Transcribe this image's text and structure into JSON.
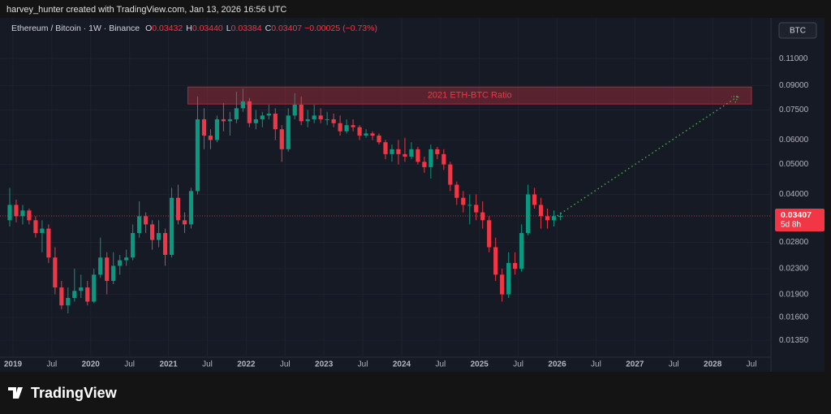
{
  "header": {
    "attribution": "harvey_hunter created with TradingView.com, Jan 13, 2026 16:56 UTC"
  },
  "legend": {
    "symbol": "Ethereum / Bitcoin · 1W · Binance",
    "ohlc": [
      {
        "key": "O",
        "value": "0.03432"
      },
      {
        "key": "H",
        "value": "0.03440"
      },
      {
        "key": "L",
        "value": "0.03384"
      },
      {
        "key": "C",
        "value": "0.03407"
      }
    ],
    "change": "−0.00025 (−0.73%)"
  },
  "currency_button": "BTC",
  "footer": {
    "logo_text": "TradingView"
  },
  "chart_data": {
    "type": "candlestick",
    "log_scale": true,
    "grid": true,
    "up_color": "#089981",
    "down_color": "#f23645",
    "x": [
      "2018-12",
      "2019-01",
      "2019-02",
      "2019-03",
      "2019-04",
      "2019-05",
      "2019-06",
      "2019-07",
      "2019-08",
      "2019-09",
      "2019-10",
      "2019-11",
      "2019-12",
      "2020-01",
      "2020-02",
      "2020-03",
      "2020-04",
      "2020-05",
      "2020-06",
      "2020-07",
      "2020-08",
      "2020-09",
      "2020-10",
      "2020-11",
      "2020-12",
      "2021-01",
      "2021-02",
      "2021-03",
      "2021-04",
      "2021-05",
      "2021-06",
      "2021-07",
      "2021-08",
      "2021-09",
      "2021-10",
      "2021-11",
      "2021-12",
      "2022-01",
      "2022-02",
      "2022-03",
      "2022-04",
      "2022-05",
      "2022-06",
      "2022-07",
      "2022-08",
      "2022-09",
      "2022-10",
      "2022-11",
      "2022-12",
      "2023-01",
      "2023-02",
      "2023-03",
      "2023-04",
      "2023-05",
      "2023-06",
      "2023-07",
      "2023-08",
      "2023-09",
      "2023-10",
      "2023-11",
      "2023-12",
      "2024-01",
      "2024-02",
      "2024-03",
      "2024-04",
      "2024-05",
      "2024-06",
      "2024-07",
      "2024-08",
      "2024-09",
      "2024-10",
      "2024-11",
      "2024-12",
      "2025-01",
      "2025-02",
      "2025-03",
      "2025-04",
      "2025-05",
      "2025-06",
      "2025-07",
      "2025-08",
      "2025-09",
      "2025-10",
      "2025-11",
      "2025-12",
      "2026-01"
    ],
    "open": [
      0.033,
      0.037,
      0.034,
      0.0355,
      0.033,
      0.03,
      0.031,
      0.025,
      0.02,
      0.0175,
      0.0185,
      0.0195,
      0.02,
      0.018,
      0.022,
      0.025,
      0.021,
      0.0235,
      0.0245,
      0.025,
      0.03,
      0.034,
      0.032,
      0.0285,
      0.03,
      0.0255,
      0.039,
      0.033,
      0.032,
      0.041,
      0.07,
      0.062,
      0.06,
      0.07,
      0.069,
      0.07,
      0.076,
      0.08,
      0.068,
      0.07,
      0.072,
      0.073,
      0.065,
      0.056,
      0.072,
      0.078,
      0.069,
      0.07,
      0.072,
      0.07,
      0.07,
      0.068,
      0.064,
      0.067,
      0.066,
      0.062,
      0.063,
      0.062,
      0.059,
      0.054,
      0.056,
      0.054,
      0.053,
      0.056,
      0.051,
      0.049,
      0.056,
      0.054,
      0.05,
      0.043,
      0.039,
      0.037,
      0.037,
      0.035,
      0.033,
      0.027,
      0.022,
      0.019,
      0.024,
      0.023,
      0.03,
      0.04,
      0.037,
      0.034,
      0.033,
      0.034
    ],
    "high": [
      0.042,
      0.0385,
      0.037,
      0.036,
      0.034,
      0.033,
      0.032,
      0.027,
      0.021,
      0.02,
      0.023,
      0.022,
      0.021,
      0.023,
      0.029,
      0.026,
      0.026,
      0.0255,
      0.0265,
      0.032,
      0.038,
      0.035,
      0.033,
      0.033,
      0.031,
      0.042,
      0.043,
      0.035,
      0.042,
      0.083,
      0.076,
      0.065,
      0.072,
      0.079,
      0.074,
      0.086,
      0.088,
      0.082,
      0.075,
      0.074,
      0.078,
      0.076,
      0.067,
      0.076,
      0.085,
      0.083,
      0.075,
      0.078,
      0.076,
      0.074,
      0.073,
      0.072,
      0.07,
      0.07,
      0.067,
      0.065,
      0.064,
      0.063,
      0.06,
      0.058,
      0.06,
      0.061,
      0.059,
      0.057,
      0.053,
      0.058,
      0.057,
      0.056,
      0.051,
      0.044,
      0.041,
      0.04,
      0.04,
      0.038,
      0.034,
      0.029,
      0.023,
      0.026,
      0.026,
      0.032,
      0.043,
      0.042,
      0.039,
      0.036,
      0.0355,
      0.035
    ],
    "low": [
      0.0315,
      0.0325,
      0.032,
      0.032,
      0.029,
      0.026,
      0.024,
      0.019,
      0.017,
      0.0165,
      0.018,
      0.0185,
      0.0175,
      0.0178,
      0.0215,
      0.019,
      0.0205,
      0.022,
      0.0235,
      0.0245,
      0.029,
      0.03,
      0.0265,
      0.027,
      0.0235,
      0.025,
      0.032,
      0.03,
      0.031,
      0.04,
      0.056,
      0.056,
      0.059,
      0.064,
      0.062,
      0.068,
      0.074,
      0.066,
      0.065,
      0.066,
      0.07,
      0.06,
      0.051,
      0.055,
      0.07,
      0.067,
      0.066,
      0.068,
      0.068,
      0.067,
      0.066,
      0.062,
      0.063,
      0.064,
      0.06,
      0.061,
      0.06,
      0.058,
      0.052,
      0.051,
      0.05,
      0.051,
      0.052,
      0.05,
      0.047,
      0.045,
      0.052,
      0.048,
      0.041,
      0.037,
      0.035,
      0.032,
      0.033,
      0.031,
      0.026,
      0.021,
      0.018,
      0.0185,
      0.022,
      0.0225,
      0.0295,
      0.036,
      0.031,
      0.031,
      0.0315,
      0.033
    ],
    "close": [
      0.037,
      0.034,
      0.0355,
      0.033,
      0.03,
      0.031,
      0.025,
      0.02,
      0.0175,
      0.0185,
      0.0195,
      0.02,
      0.018,
      0.022,
      0.025,
      0.021,
      0.0235,
      0.0245,
      0.025,
      0.03,
      0.034,
      0.032,
      0.0285,
      0.03,
      0.0255,
      0.039,
      0.033,
      0.032,
      0.041,
      0.07,
      0.062,
      0.06,
      0.07,
      0.069,
      0.07,
      0.076,
      0.08,
      0.068,
      0.07,
      0.072,
      0.073,
      0.065,
      0.056,
      0.072,
      0.078,
      0.069,
      0.07,
      0.072,
      0.07,
      0.07,
      0.068,
      0.064,
      0.067,
      0.066,
      0.062,
      0.063,
      0.062,
      0.059,
      0.054,
      0.056,
      0.054,
      0.053,
      0.056,
      0.051,
      0.049,
      0.056,
      0.054,
      0.05,
      0.043,
      0.039,
      0.037,
      0.037,
      0.035,
      0.033,
      0.027,
      0.022,
      0.019,
      0.024,
      0.023,
      0.03,
      0.04,
      0.037,
      0.034,
      0.033,
      0.034,
      0.03407
    ],
    "xlim": [
      "2018-11",
      "2028-10"
    ],
    "xticks": [
      {
        "value": "2019-01",
        "label": "2019"
      },
      {
        "value": "2019-07",
        "label": "Jul"
      },
      {
        "value": "2020-01",
        "label": "2020"
      },
      {
        "value": "2020-07",
        "label": "Jul"
      },
      {
        "value": "2021-01",
        "label": "2021"
      },
      {
        "value": "2021-07",
        "label": "Jul"
      },
      {
        "value": "2022-01",
        "label": "2022"
      },
      {
        "value": "2022-07",
        "label": "Jul"
      },
      {
        "value": "2023-01",
        "label": "2023"
      },
      {
        "value": "2023-07",
        "label": "Jul"
      },
      {
        "value": "2024-01",
        "label": "2024"
      },
      {
        "value": "2024-07",
        "label": "Jul"
      },
      {
        "value": "2025-01",
        "label": "2025"
      },
      {
        "value": "2025-07",
        "label": "Jul"
      },
      {
        "value": "2026-01",
        "label": "2026"
      },
      {
        "value": "2026-07",
        "label": "Jul"
      },
      {
        "value": "2027-01",
        "label": "2027"
      },
      {
        "value": "2027-07",
        "label": "Jul"
      },
      {
        "value": "2028-01",
        "label": "2028"
      },
      {
        "value": "2028-07",
        "label": "Jul"
      }
    ],
    "ylim": [
      0.0119,
      0.149
    ],
    "yticks": [
      {
        "value": 0.11,
        "label": "0.11000"
      },
      {
        "value": 0.09,
        "label": "0.09000"
      },
      {
        "value": 0.075,
        "label": "0.07500"
      },
      {
        "value": 0.06,
        "label": "0.06000"
      },
      {
        "value": 0.05,
        "label": "0.05000"
      },
      {
        "value": 0.04,
        "label": "0.04000"
      },
      {
        "value": 0.028,
        "label": "0.02800"
      },
      {
        "value": 0.023,
        "label": "0.02300"
      },
      {
        "value": 0.019,
        "label": "0.01900"
      },
      {
        "value": 0.016,
        "label": "0.01600"
      },
      {
        "value": 0.0135,
        "label": "0.01350"
      }
    ],
    "zone": {
      "label": "2021 ETH-BTC Ratio",
      "x": [
        "2021-04",
        "2028-07"
      ],
      "y": [
        0.0784,
        0.089
      ]
    },
    "projection": {
      "x": [
        "2026-01",
        "2028-05"
      ],
      "y": [
        0.0341,
        0.0832
      ]
    },
    "last_price": {
      "value": 0.03407,
      "countdown": "5d 8h"
    }
  }
}
